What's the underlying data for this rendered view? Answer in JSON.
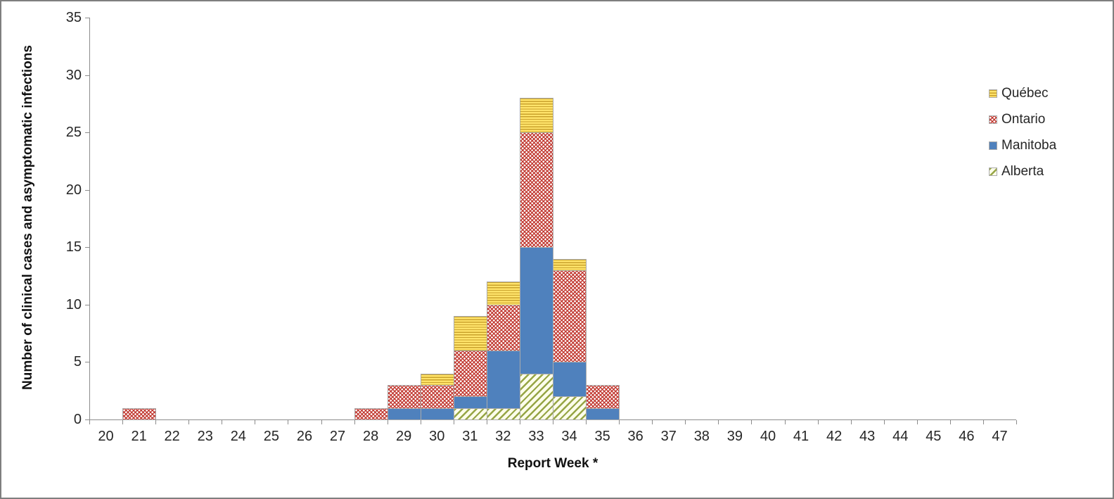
{
  "chart_data": {
    "type": "bar",
    "stacked": true,
    "title": "",
    "xlabel": "Report Week *",
    "ylabel": "Number of clinical cases and asymptomatic infections",
    "categories": [
      20,
      21,
      22,
      23,
      24,
      25,
      26,
      27,
      28,
      29,
      30,
      31,
      32,
      33,
      34,
      35,
      36,
      37,
      38,
      39,
      40,
      41,
      42,
      43,
      44,
      45,
      46,
      47
    ],
    "yticks": [
      0,
      5,
      10,
      15,
      20,
      25,
      30,
      35
    ],
    "ylim": [
      0,
      35
    ],
    "grid": "off",
    "legend_position": "upper right",
    "series": [
      {
        "name": "Alberta",
        "key": "alberta",
        "values": [
          0,
          0,
          0,
          0,
          0,
          0,
          0,
          0,
          0,
          0,
          0,
          1,
          1,
          4,
          2,
          0,
          0,
          0,
          0,
          0,
          0,
          0,
          0,
          0,
          0,
          0,
          0,
          0
        ]
      },
      {
        "name": "Manitoba",
        "key": "manitoba",
        "values": [
          0,
          0,
          0,
          0,
          0,
          0,
          0,
          0,
          0,
          1,
          1,
          1,
          5,
          11,
          3,
          1,
          0,
          0,
          0,
          0,
          0,
          0,
          0,
          0,
          0,
          0,
          0,
          0
        ]
      },
      {
        "name": "Ontario",
        "key": "ontario",
        "values": [
          0,
          1,
          0,
          0,
          0,
          0,
          0,
          0,
          1,
          2,
          2,
          4,
          4,
          10,
          8,
          2,
          0,
          0,
          0,
          0,
          0,
          0,
          0,
          0,
          0,
          0,
          0,
          0
        ]
      },
      {
        "name": "Québec",
        "key": "quebec",
        "values": [
          0,
          0,
          0,
          0,
          0,
          0,
          0,
          0,
          0,
          0,
          1,
          3,
          2,
          3,
          1,
          0,
          0,
          0,
          0,
          0,
          0,
          0,
          0,
          0,
          0,
          0,
          0,
          0
        ]
      }
    ],
    "legend": {
      "items": [
        {
          "label": "Québec",
          "key": "quebec"
        },
        {
          "label": "Ontario",
          "key": "ontario"
        },
        {
          "label": "Manitoba",
          "key": "manitoba"
        },
        {
          "label": "Alberta",
          "key": "alberta"
        }
      ]
    }
  },
  "colors": {
    "manitoba": "#4F81BD",
    "ontario": "#C23B33",
    "quebec_bg": "#FFE36A",
    "quebec_stripe": "#C9A22C",
    "alberta_bg": "#FCFDEB",
    "alberta_stripe": "#96A545",
    "border": "#ABABAB",
    "axis": "#8C8C8C",
    "text": "#262626",
    "frame": "#7F7F7F"
  }
}
